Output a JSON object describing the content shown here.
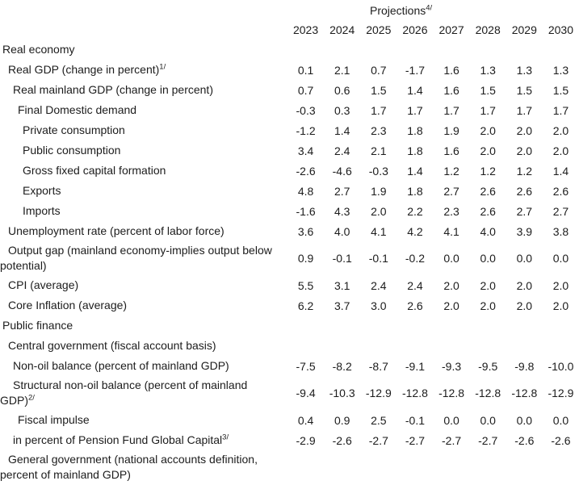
{
  "colors": {
    "text": "#1c1c1c",
    "background": "#ffffff"
  },
  "table": {
    "projections_label": "Projections",
    "projections_sup": "4/",
    "years": [
      "2023",
      "2024",
      "2025",
      "2026",
      "2027",
      "2028",
      "2029",
      "2030"
    ],
    "rows": [
      {
        "label": "Real economy",
        "sup": "",
        "indent": 0,
        "section": true,
        "values": []
      },
      {
        "label": "Real GDP (change in percent)",
        "sup": "1/",
        "indent": 1,
        "section": false,
        "values": [
          "0.1",
          "2.1",
          "0.7",
          "-1.7",
          "1.6",
          "1.3",
          "1.3",
          "1.3"
        ]
      },
      {
        "label": "Real mainland GDP (change in percent)",
        "sup": "",
        "indent": 2,
        "section": false,
        "values": [
          "0.7",
          "0.6",
          "1.5",
          "1.4",
          "1.6",
          "1.5",
          "1.5",
          "1.5"
        ]
      },
      {
        "label": "Final Domestic demand",
        "sup": "",
        "indent": 3,
        "section": false,
        "values": [
          "-0.3",
          "0.3",
          "1.7",
          "1.7",
          "1.7",
          "1.7",
          "1.7",
          "1.7"
        ]
      },
      {
        "label": "Private consumption",
        "sup": "",
        "indent": 4,
        "section": false,
        "values": [
          "-1.2",
          "1.4",
          "2.3",
          "1.8",
          "1.9",
          "2.0",
          "2.0",
          "2.0"
        ]
      },
      {
        "label": "Public consumption",
        "sup": "",
        "indent": 4,
        "section": false,
        "values": [
          "3.4",
          "2.4",
          "2.1",
          "1.8",
          "1.6",
          "2.0",
          "2.0",
          "2.0"
        ]
      },
      {
        "label": "Gross fixed capital formation",
        "sup": "",
        "indent": 4,
        "section": false,
        "values": [
          "-2.6",
          "-4.6",
          "-0.3",
          "1.4",
          "1.2",
          "1.2",
          "1.2",
          "1.4"
        ]
      },
      {
        "label": "Exports",
        "sup": "",
        "indent": 4,
        "section": false,
        "values": [
          "4.8",
          "2.7",
          "1.9",
          "1.8",
          "2.7",
          "2.6",
          "2.6",
          "2.6"
        ]
      },
      {
        "label": "Imports",
        "sup": "",
        "indent": 4,
        "section": false,
        "values": [
          "-1.6",
          "4.3",
          "2.0",
          "2.2",
          "2.3",
          "2.6",
          "2.7",
          "2.7"
        ]
      },
      {
        "label": "Unemployment rate (percent of labor force)",
        "sup": "",
        "indent": 1,
        "section": false,
        "values": [
          "3.6",
          "4.0",
          "4.1",
          "4.2",
          "4.1",
          "4.0",
          "3.9",
          "3.8"
        ]
      },
      {
        "label": "Output gap (mainland economy-implies output below potential)",
        "sup": "",
        "indent": 1,
        "section": false,
        "values": [
          "0.9",
          "-0.1",
          "-0.1",
          "-0.2",
          "0.0",
          "0.0",
          "0.0",
          "0.0"
        ]
      },
      {
        "label": "CPI (average)",
        "sup": "",
        "indent": 1,
        "section": false,
        "values": [
          "5.5",
          "3.1",
          "2.4",
          "2.4",
          "2.0",
          "2.0",
          "2.0",
          "2.0"
        ]
      },
      {
        "label": "Core Inflation (average)",
        "sup": "",
        "indent": 1,
        "section": false,
        "values": [
          "6.2",
          "3.7",
          "3.0",
          "2.6",
          "2.0",
          "2.0",
          "2.0",
          "2.0"
        ]
      },
      {
        "label": "Public finance",
        "sup": "",
        "indent": 0,
        "section": true,
        "values": []
      },
      {
        "label": "Central government (fiscal account basis)",
        "sup": "",
        "indent": 1,
        "section": false,
        "values": []
      },
      {
        "label": "Non-oil balance (percent of mainland GDP)",
        "sup": "",
        "indent": 2,
        "section": false,
        "values": [
          "-7.5",
          "-8.2",
          "-8.7",
          "-9.1",
          "-9.3",
          "-9.5",
          "-9.8",
          "-10.0"
        ]
      },
      {
        "label": "Structural non-oil balance (percent of mainland GDP)",
        "sup": "2/",
        "indent": 2,
        "section": false,
        "values": [
          "-9.4",
          "-10.3",
          "-12.9",
          "-12.8",
          "-12.8",
          "-12.8",
          "-12.8",
          "-12.9"
        ]
      },
      {
        "label": "Fiscal impulse",
        "sup": "",
        "indent": 3,
        "section": false,
        "values": [
          "0.4",
          "0.9",
          "2.5",
          "-0.1",
          "0.0",
          "0.0",
          "0.0",
          "0.0"
        ]
      },
      {
        "label": "in percent of Pension Fund Global Capital",
        "sup": "3/",
        "indent": 2,
        "section": false,
        "values": [
          "-2.9",
          "-2.6",
          "-2.7",
          "-2.7",
          "-2.7",
          "-2.7",
          "-2.6",
          "-2.6"
        ]
      },
      {
        "label": "General government (national accounts definition, percent of mainland GDP)",
        "sup": "",
        "indent": 1,
        "section": false,
        "values": []
      }
    ]
  }
}
